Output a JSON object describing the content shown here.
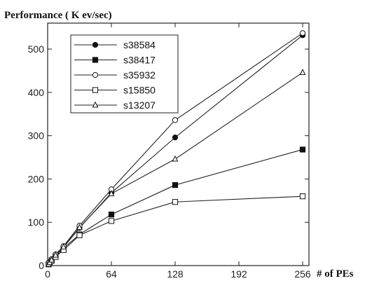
{
  "chart_data": {
    "type": "line",
    "ylabel": "Performance ( K ev/sec)",
    "xlabel": "# of PEs",
    "x_ticks": [
      0,
      64,
      128,
      192,
      256
    ],
    "y_ticks": [
      0,
      100,
      200,
      300,
      400,
      500
    ],
    "xlim": [
      0,
      256
    ],
    "ylim": [
      0,
      560
    ],
    "grid": false,
    "legend_position": "top-left",
    "series": [
      {
        "name": "s38584",
        "marker": "filled-circle",
        "x": [
          1,
          2,
          4,
          8,
          16,
          32,
          64,
          128,
          256
        ],
        "y": [
          3,
          7,
          13,
          24,
          42,
          87,
          168,
          296,
          532
        ]
      },
      {
        "name": "s38417",
        "marker": "filled-square",
        "x": [
          1,
          2,
          4,
          8,
          16,
          32,
          64,
          128,
          256
        ],
        "y": [
          3,
          6,
          12,
          22,
          40,
          72,
          118,
          186,
          268
        ]
      },
      {
        "name": "s35932",
        "marker": "open-circle",
        "x": [
          1,
          2,
          4,
          8,
          16,
          32,
          64,
          128,
          256
        ],
        "y": [
          4,
          8,
          15,
          26,
          45,
          92,
          176,
          336,
          537
        ]
      },
      {
        "name": "s15850",
        "marker": "open-square",
        "x": [
          1,
          2,
          4,
          8,
          16,
          32,
          64,
          128,
          256
        ],
        "y": [
          3,
          6,
          11,
          20,
          36,
          70,
          103,
          147,
          160
        ]
      },
      {
        "name": "s13207",
        "marker": "open-triangle",
        "x": [
          1,
          2,
          4,
          8,
          16,
          32,
          64,
          128,
          256
        ],
        "y": [
          3,
          7,
          13,
          24,
          43,
          88,
          166,
          246,
          446
        ]
      }
    ]
  }
}
